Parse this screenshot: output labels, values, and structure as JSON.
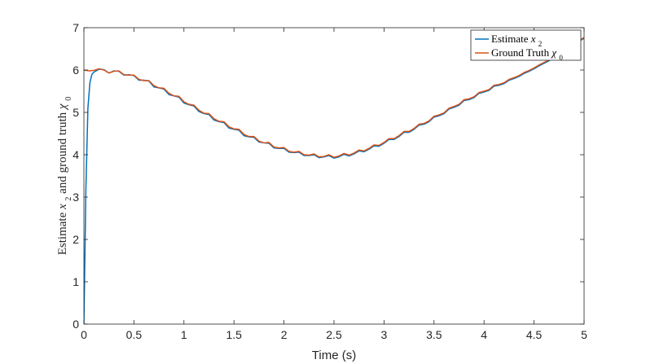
{
  "chart_data": {
    "type": "line",
    "xlabel": "Time (s)",
    "ylabel": {
      "prefix": "Estimate ",
      "x_sym": "x",
      "x_hat": "^",
      "x_sub": "2",
      "middle": " and ground truth ",
      "chi_sym": "χ",
      "chi_dot": "˙",
      "chi_sub": "0"
    },
    "xlim": [
      0,
      5
    ],
    "ylim": [
      0,
      7
    ],
    "x_ticks": [
      "0",
      "0.5",
      "1",
      "1.5",
      "2",
      "2.5",
      "3",
      "3.5",
      "4",
      "4.5",
      "5"
    ],
    "y_ticks": [
      "0",
      "1",
      "2",
      "3",
      "4",
      "5",
      "6",
      "7"
    ],
    "grid": false,
    "legend": {
      "placement": "top-right",
      "entries": [
        {
          "text": "Estimate ",
          "sym": "x",
          "accent": "^",
          "sub": "2",
          "color": "#0072BD"
        },
        {
          "text": "Ground Truth ",
          "sym": "χ",
          "accent": "˙",
          "sub": "0",
          "color": "#D95319"
        }
      ]
    },
    "series": [
      {
        "color": "#0072BD",
        "x": [
          0,
          0.02,
          0.04,
          0.06,
          0.08,
          0.1,
          0.15,
          0.2,
          0.25,
          0.3,
          0.35,
          0.4,
          0.45,
          0.5,
          0.55,
          0.6,
          0.65,
          0.7,
          0.75,
          0.8,
          0.85,
          0.9,
          0.95,
          1.0,
          1.05,
          1.1,
          1.15,
          1.2,
          1.25,
          1.3,
          1.35,
          1.4,
          1.45,
          1.5,
          1.55,
          1.6,
          1.65,
          1.7,
          1.75,
          1.8,
          1.85,
          1.9,
          1.95,
          2.0,
          2.05,
          2.1,
          2.15,
          2.2,
          2.25,
          2.3,
          2.35,
          2.4,
          2.45,
          2.5,
          2.55,
          2.6,
          2.65,
          2.7,
          2.75,
          2.8,
          2.85,
          2.9,
          2.95,
          3.0,
          3.05,
          3.1,
          3.15,
          3.2,
          3.25,
          3.3,
          3.35,
          3.4,
          3.45,
          3.5,
          3.55,
          3.6,
          3.65,
          3.7,
          3.75,
          3.8,
          3.85,
          3.9,
          3.95,
          4.0,
          4.05,
          4.1,
          4.15,
          4.2,
          4.25,
          4.3,
          4.35,
          4.4,
          4.45,
          4.5,
          4.55,
          4.6,
          4.65,
          4.7,
          4.75,
          4.8,
          4.85,
          4.9,
          4.95,
          5.0
        ],
        "values": [
          0,
          3.2,
          5.1,
          5.7,
          5.9,
          5.95,
          6.02,
          6.01,
          5.93,
          5.98,
          5.97,
          5.88,
          5.89,
          5.87,
          5.76,
          5.76,
          5.74,
          5.6,
          5.58,
          5.55,
          5.42,
          5.39,
          5.36,
          5.22,
          5.18,
          5.15,
          5.02,
          4.97,
          4.95,
          4.82,
          4.78,
          4.76,
          4.63,
          4.6,
          4.58,
          4.45,
          4.42,
          4.41,
          4.3,
          4.28,
          4.27,
          4.16,
          4.15,
          4.15,
          4.06,
          4.05,
          4.06,
          3.98,
          3.98,
          4.0,
          3.93,
          3.95,
          3.98,
          3.92,
          3.95,
          4.01,
          3.97,
          4.02,
          4.09,
          4.07,
          4.13,
          4.21,
          4.2,
          4.27,
          4.36,
          4.36,
          4.43,
          4.53,
          4.53,
          4.6,
          4.7,
          4.72,
          4.78,
          4.89,
          4.92,
          4.97,
          5.08,
          5.12,
          5.17,
          5.28,
          5.3,
          5.35,
          5.45,
          5.48,
          5.52,
          5.62,
          5.64,
          5.68,
          5.76,
          5.8,
          5.85,
          5.92,
          5.97,
          6.03,
          6.1,
          6.16,
          6.22,
          6.3,
          6.37,
          6.44,
          6.52,
          6.6,
          6.68,
          6.75
        ]
      },
      {
        "color": "#D95319",
        "x": [
          0,
          0.05,
          0.1,
          0.15,
          0.2,
          0.25,
          0.3,
          0.35,
          0.4,
          0.45,
          0.5,
          0.55,
          0.6,
          0.65,
          0.7,
          0.75,
          0.8,
          0.85,
          0.9,
          0.95,
          1.0,
          1.05,
          1.1,
          1.15,
          1.2,
          1.25,
          1.3,
          1.35,
          1.4,
          1.45,
          1.5,
          1.55,
          1.6,
          1.65,
          1.7,
          1.75,
          1.8,
          1.85,
          1.9,
          1.95,
          2.0,
          2.05,
          2.1,
          2.15,
          2.2,
          2.25,
          2.3,
          2.35,
          2.4,
          2.45,
          2.5,
          2.55,
          2.6,
          2.65,
          2.7,
          2.75,
          2.8,
          2.85,
          2.9,
          2.95,
          3.0,
          3.05,
          3.1,
          3.15,
          3.2,
          3.25,
          3.3,
          3.35,
          3.4,
          3.45,
          3.5,
          3.55,
          3.6,
          3.65,
          3.7,
          3.75,
          3.8,
          3.85,
          3.9,
          3.95,
          4.0,
          4.05,
          4.1,
          4.15,
          4.2,
          4.25,
          4.3,
          4.35,
          4.4,
          4.45,
          4.5,
          4.55,
          4.6,
          4.65,
          4.7,
          4.75,
          4.8,
          4.85,
          4.9,
          4.95,
          5.0
        ],
        "values": [
          6.0,
          5.98,
          5.99,
          6.03,
          6.0,
          5.93,
          5.97,
          5.98,
          5.89,
          5.88,
          5.88,
          5.78,
          5.75,
          5.75,
          5.63,
          5.58,
          5.57,
          5.45,
          5.39,
          5.38,
          5.25,
          5.19,
          5.17,
          5.05,
          4.98,
          4.97,
          4.85,
          4.79,
          4.78,
          4.66,
          4.61,
          4.6,
          4.48,
          4.43,
          4.43,
          4.32,
          4.28,
          4.29,
          4.18,
          4.16,
          4.17,
          4.08,
          4.06,
          4.08,
          4.0,
          3.99,
          4.02,
          3.95,
          3.96,
          4.0,
          3.94,
          3.97,
          4.03,
          3.99,
          4.04,
          4.11,
          4.09,
          4.15,
          4.23,
          4.22,
          4.29,
          4.38,
          4.38,
          4.45,
          4.55,
          4.55,
          4.62,
          4.72,
          4.74,
          4.8,
          4.91,
          4.94,
          4.99,
          5.1,
          5.14,
          5.19,
          5.3,
          5.32,
          5.37,
          5.47,
          5.5,
          5.54,
          5.64,
          5.66,
          5.7,
          5.78,
          5.82,
          5.87,
          5.94,
          5.99,
          6.05,
          6.12,
          6.18,
          6.24,
          6.32,
          6.39,
          6.46,
          6.54,
          6.62,
          6.7,
          6.77
        ]
      }
    ]
  }
}
